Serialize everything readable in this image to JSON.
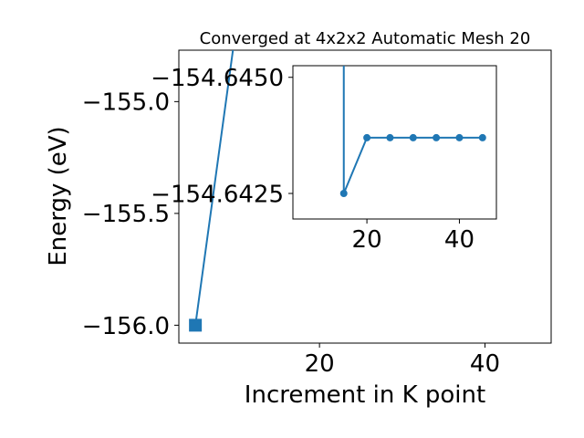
{
  "chart_data": [
    {
      "type": "line",
      "title": "Converged at 4x2x2 Automatic Mesh 20",
      "xlabel": "Increment in K point",
      "ylabel": "Energy (eV)",
      "xlim": [
        3,
        48
      ],
      "ylim": [
        -156.08,
        -154.77
      ],
      "xticks": [
        20,
        40
      ],
      "xtick_labels": [
        "20",
        "40"
      ],
      "yticks": [
        -156.0,
        -155.5,
        -155.0
      ],
      "ytick_labels": [
        "−156.0",
        "−155.5",
        "−155.0"
      ],
      "grid": false,
      "series": [
        {
          "marker": "square",
          "color": "#1f77b4",
          "x": [
            5,
            10,
            15,
            20,
            25,
            30,
            35,
            40,
            45
          ],
          "y": [
            -156.0,
            -154.6448,
            -154.6439,
            -154.6439,
            -154.6439,
            -154.644,
            -154.644,
            -154.6439,
            -154.6439
          ]
        }
      ]
    },
    {
      "type": "line",
      "title": "",
      "xlabel": "",
      "ylabel": "",
      "xlim": [
        4,
        48
      ],
      "ylim": [
        -154.64195,
        -154.64525
      ],
      "xticks": [
        20,
        40
      ],
      "xtick_labels": [
        "20",
        "40"
      ],
      "yticks": [
        -154.645,
        -154.6425
      ],
      "ytick_labels": [
        "−154.6450",
        "−154.6425"
      ],
      "grid": false,
      "series": [
        {
          "marker": "circle",
          "color": "#1f77b4",
          "x": [
            15,
            15,
            20,
            25,
            30,
            35,
            40,
            45
          ],
          "y": [
            -154.6455,
            -154.6425,
            -154.6437,
            -154.6437,
            -154.6437,
            -154.6437,
            -154.6437,
            -154.6437
          ]
        }
      ]
    }
  ]
}
